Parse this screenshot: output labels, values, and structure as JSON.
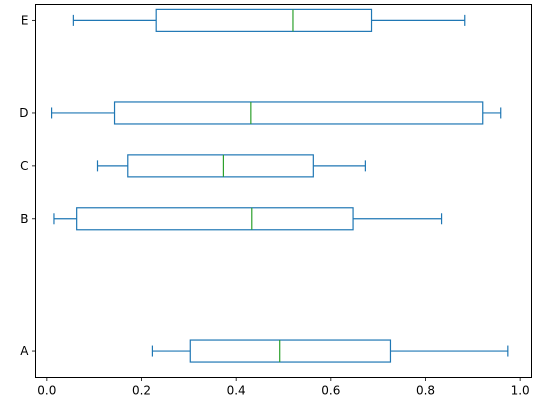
{
  "chart_data": {
    "type": "boxplot",
    "orientation": "horizontal",
    "title": "",
    "xlabel": "",
    "ylabel": "",
    "xlim": [
      -0.024,
      1.024
    ],
    "ylim": [
      -0.5,
      13.6
    ],
    "x_ticks": [
      "0.0",
      "0.2",
      "0.4",
      "0.6",
      "0.8",
      "1.0"
    ],
    "x_tick_values": [
      0.0,
      0.2,
      0.4,
      0.6,
      0.8,
      1.0
    ],
    "grid": false,
    "colors": {
      "box": "#1f77b4",
      "median": "#2ca02c"
    },
    "series": [
      {
        "label": "A",
        "position": 0.5,
        "whislo": 0.223,
        "q1": 0.303,
        "med": 0.492,
        "q3": 0.726,
        "whishi": 0.974
      },
      {
        "label": "B",
        "position": 5.5,
        "whislo": 0.015,
        "q1": 0.063,
        "med": 0.433,
        "q3": 0.647,
        "whishi": 0.834
      },
      {
        "label": "C",
        "position": 7.5,
        "whislo": 0.107,
        "q1": 0.171,
        "med": 0.373,
        "q3": 0.563,
        "whishi": 0.673
      },
      {
        "label": "D",
        "position": 9.5,
        "whislo": 0.01,
        "q1": 0.143,
        "med": 0.431,
        "q3": 0.921,
        "whishi": 0.959
      },
      {
        "label": "E",
        "position": 13.0,
        "whislo": 0.056,
        "q1": 0.231,
        "med": 0.52,
        "q3": 0.686,
        "whishi": 0.883
      }
    ]
  }
}
